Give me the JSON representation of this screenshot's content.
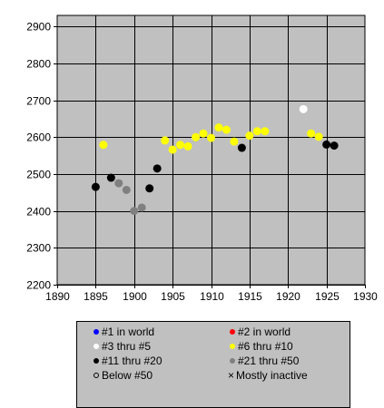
{
  "chart_data": {
    "type": "scatter",
    "x_ticks": [
      1890,
      1895,
      1900,
      1905,
      1910,
      1915,
      1920,
      1925,
      1930
    ],
    "y_ticks": [
      2200,
      2300,
      2400,
      2500,
      2600,
      2700,
      2800,
      2900
    ],
    "xlim": [
      1890,
      1930
    ],
    "ylim": [
      2200,
      2930
    ],
    "grid": true,
    "plot_background": "#c0c0c0",
    "legend_placement": "bottom",
    "series": [
      {
        "name": "#1 in world",
        "color": "#0000ff",
        "points": []
      },
      {
        "name": "#2 in world",
        "color": "#ff0000",
        "points": []
      },
      {
        "name": "#3 thru #5",
        "color": "#ffffff",
        "points": [
          [
            1922,
            2676
          ]
        ]
      },
      {
        "name": "#6 thru #10",
        "color": "#ffff00",
        "points": [
          [
            1896,
            2579
          ],
          [
            1904,
            2591
          ],
          [
            1905,
            2566
          ],
          [
            1906,
            2579
          ],
          [
            1907,
            2575
          ],
          [
            1908,
            2600
          ],
          [
            1909,
            2610
          ],
          [
            1910,
            2598
          ],
          [
            1911,
            2626
          ],
          [
            1912,
            2620
          ],
          [
            1913,
            2588
          ],
          [
            1915,
            2604
          ],
          [
            1916,
            2616
          ],
          [
            1917,
            2616
          ],
          [
            1923,
            2610
          ],
          [
            1924,
            2601
          ]
        ]
      },
      {
        "name": "#11 thru #20",
        "color": "#000000",
        "points": [
          [
            1895,
            2465
          ],
          [
            1897,
            2490
          ],
          [
            1902,
            2461
          ],
          [
            1903,
            2515
          ],
          [
            1914,
            2571
          ],
          [
            1925,
            2580
          ],
          [
            1926,
            2577
          ]
        ]
      },
      {
        "name": "#21 thru #50",
        "color": "#808080",
        "points": [
          [
            1898,
            2475
          ],
          [
            1899,
            2457
          ],
          [
            1900,
            2400
          ],
          [
            1901,
            2409
          ]
        ]
      },
      {
        "name": "Below #50",
        "color": "none",
        "points": []
      },
      {
        "name": "Mostly inactive",
        "color": "none",
        "points": []
      }
    ]
  },
  "legend": [
    {
      "label": "#1 in world",
      "marker": "dot",
      "color": "#0000ff"
    },
    {
      "label": "#2 in world",
      "marker": "dot",
      "color": "#ff0000"
    },
    {
      "label": "#3 thru #5",
      "marker": "dot",
      "color": "#ffffff"
    },
    {
      "label": "#6 thru #10",
      "marker": "dot",
      "color": "#ffff00"
    },
    {
      "label": "#11 thru #20",
      "marker": "dot",
      "color": "#000000"
    },
    {
      "label": "#21 thru #50",
      "marker": "dot",
      "color": "#808080"
    },
    {
      "label": "Below #50",
      "marker": "ring",
      "color": "#000000"
    },
    {
      "label": "Mostly inactive",
      "marker": "x",
      "color": "#000000"
    }
  ]
}
